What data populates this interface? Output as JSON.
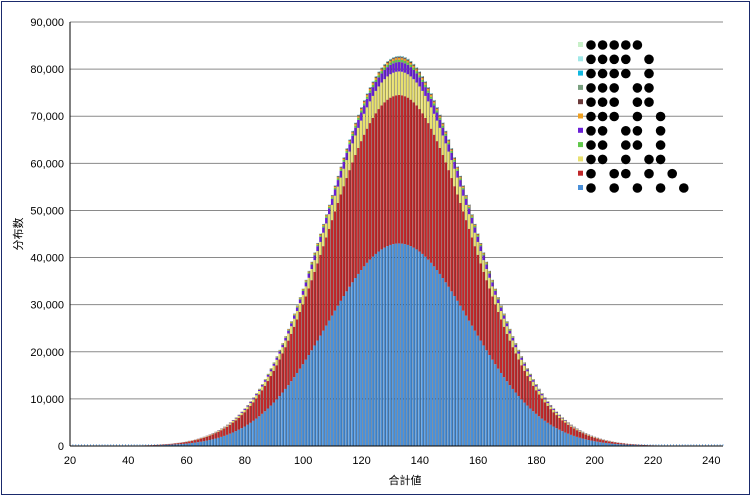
{
  "chart_data": {
    "type": "bar",
    "stacked": true,
    "title": "",
    "xlabel": "合計値",
    "ylabel": "分布数",
    "xlim": [
      20,
      244
    ],
    "ylim": [
      0,
      90000
    ],
    "xticks": [
      20,
      40,
      60,
      80,
      100,
      120,
      140,
      160,
      180,
      200,
      220,
      240
    ],
    "yticks": [
      0,
      10000,
      20000,
      30000,
      40000,
      50000,
      60000,
      70000,
      80000,
      90000
    ],
    "ytick_labels": [
      "0",
      "10,000",
      "20,000",
      "30,000",
      "40,000",
      "50,000",
      "60,000",
      "70,000",
      "80,000",
      "90,000"
    ],
    "xtick_labels": [
      "20",
      "40",
      "60",
      "80",
      "100",
      "120",
      "140",
      "160",
      "180",
      "200",
      "220",
      "240"
    ],
    "grid": true,
    "legend_position": "top-right",
    "distribution_center": 133,
    "series": [
      {
        "color": "#4a90d9",
        "peak": 43000,
        "sigma": 24.5
      },
      {
        "color": "#c0282a",
        "peak": 31500,
        "sigma": 24.5
      },
      {
        "color": "#e8e070",
        "peak": 5000,
        "sigma": 24.5
      },
      {
        "color": "#6a1fd6",
        "peak": 2000,
        "sigma": 24.5
      },
      {
        "color": "#60c84a",
        "peak": 500,
        "sigma": 24.5
      },
      {
        "color": "#f0a020",
        "peak": 400,
        "sigma": 24.5
      },
      {
        "color": "#6b3a3a",
        "peak": 200,
        "sigma": 24.5
      },
      {
        "color": "#7aa080",
        "peak": 100,
        "sigma": 24.5
      },
      {
        "color": "#10b8e0",
        "peak": 60,
        "sigma": 24.5
      },
      {
        "color": "#a0e8e8",
        "peak": 40,
        "sigma": 24.5
      },
      {
        "color": "#c8f0c8",
        "peak": 20,
        "sigma": 24.5
      }
    ],
    "legend": [
      {
        "swatch": "#c8f0c8",
        "dots": [
          0,
          1,
          2,
          3,
          4
        ]
      },
      {
        "swatch": "#a0e8e8",
        "dots": [
          0,
          1,
          2,
          3,
          5
        ]
      },
      {
        "swatch": "#10b8e0",
        "dots": [
          0,
          1,
          2,
          3,
          5
        ]
      },
      {
        "swatch": "#7aa080",
        "dots": [
          0,
          1,
          2,
          4,
          5
        ]
      },
      {
        "swatch": "#6b3a3a",
        "dots": [
          0,
          1,
          2,
          4,
          5
        ]
      },
      {
        "swatch": "#f0a020",
        "dots": [
          0,
          1,
          2,
          4,
          6
        ]
      },
      {
        "swatch": "#6a1fd6",
        "dots": [
          0,
          1,
          3,
          4,
          6
        ]
      },
      {
        "swatch": "#60c84a",
        "dots": [
          0,
          1,
          3,
          4,
          6
        ]
      },
      {
        "swatch": "#e8e070",
        "dots": [
          0,
          1,
          3,
          5,
          6
        ]
      },
      {
        "swatch": "#c0282a",
        "dots": [
          0,
          2,
          3,
          5,
          7
        ]
      },
      {
        "swatch": "#4a90d9",
        "dots": [
          0,
          2,
          4,
          6,
          8
        ]
      }
    ]
  }
}
